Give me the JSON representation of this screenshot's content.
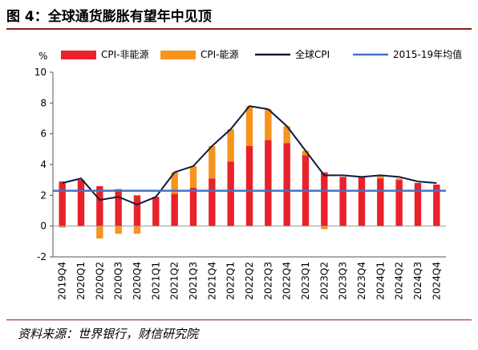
{
  "figure": {
    "title": "图 4：全球通货膨胀有望年中见顶",
    "source": "资料来源：世界银行，财信研究院"
  },
  "chart_data": {
    "type": "bar",
    "unit_label": "%",
    "categories": [
      "2019Q4",
      "2020Q1",
      "2020Q2",
      "2020Q3",
      "2020Q4",
      "2021Q1",
      "2021Q2",
      "2021Q3",
      "2021Q4",
      "2022Q1",
      "2022Q2",
      "2022Q3",
      "2022Q4",
      "2023Q1",
      "2023Q2",
      "2023Q3",
      "2023Q4",
      "2024Q1",
      "2024Q2",
      "2024Q3",
      "2024Q4"
    ],
    "series": [
      {
        "name": "CPI-非能源",
        "kind": "stacked-bar",
        "color": "#e8212b",
        "values": [
          2.9,
          3.0,
          2.6,
          2.4,
          2.0,
          1.9,
          2.1,
          2.5,
          3.1,
          4.2,
          5.2,
          5.6,
          5.4,
          4.6,
          3.5,
          3.2,
          3.2,
          3.1,
          3.0,
          2.8,
          2.7
        ]
      },
      {
        "name": "CPI-能源",
        "kind": "stacked-bar",
        "color": "#f7941d",
        "values": [
          -0.1,
          0.0,
          -0.8,
          -0.5,
          -0.5,
          0.0,
          1.4,
          1.4,
          2.1,
          2.1,
          2.6,
          2.0,
          1.1,
          0.3,
          -0.2,
          0.0,
          0.0,
          0.2,
          0.1,
          0.0,
          0.0
        ]
      },
      {
        "name": "全球CPI",
        "kind": "line",
        "color": "#0d1b3e",
        "values": [
          2.8,
          3.1,
          1.7,
          1.9,
          1.4,
          1.9,
          3.5,
          3.9,
          5.2,
          6.3,
          7.8,
          7.6,
          6.5,
          4.9,
          3.3,
          3.3,
          3.2,
          3.3,
          3.2,
          2.9,
          2.8
        ]
      },
      {
        "name": "2015-19年均值",
        "kind": "line",
        "color": "#4472c4",
        "values": [
          2.3,
          2.3,
          2.3,
          2.3,
          2.3,
          2.3,
          2.3,
          2.3,
          2.3,
          2.3,
          2.3,
          2.3,
          2.3,
          2.3,
          2.3,
          2.3,
          2.3,
          2.3,
          2.3,
          2.3,
          2.3
        ]
      }
    ],
    "ylim": [
      -2,
      10
    ],
    "yticks": [
      -2,
      0,
      2,
      4,
      6,
      8,
      10
    ],
    "legend_placement": "top",
    "grid": false
  }
}
